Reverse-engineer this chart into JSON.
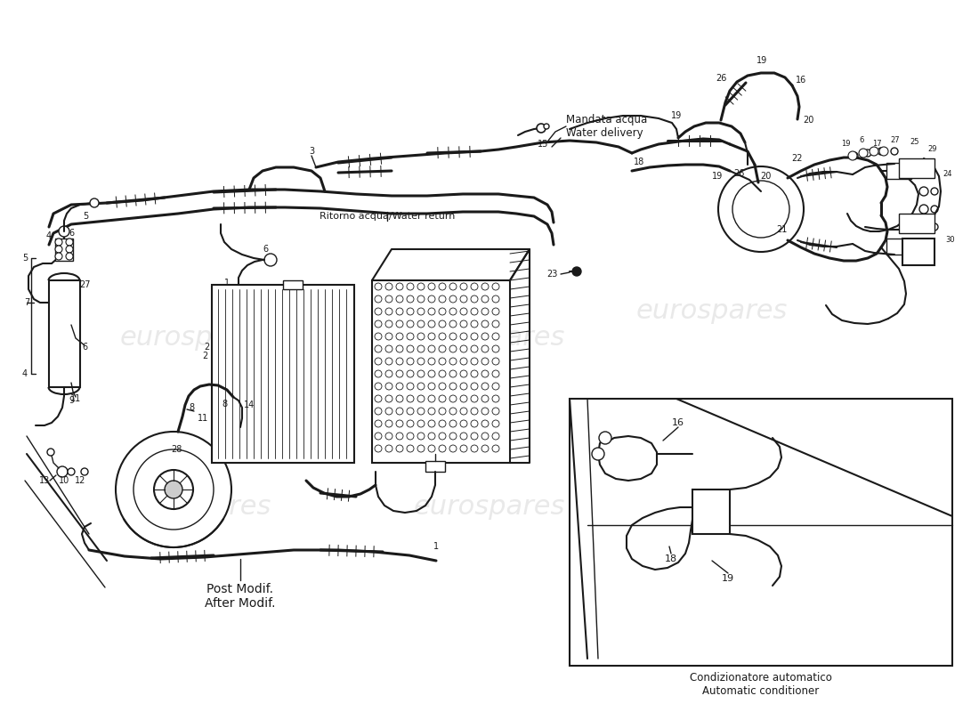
{
  "bg_color": "#ffffff",
  "line_color": "#1a1a1a",
  "text_color": "#1a1a1a",
  "watermark_text": "eurospares",
  "labels": {
    "water_delivery": "Mandata acqua\nWater delivery",
    "water_return": "Ritorno acqua/Water return",
    "post_modif": "Post Modif.\nAfter Modif.",
    "auto_conditioner": "Condizionatore automatico\nAutomatic conditioner"
  },
  "fig_width": 11.0,
  "fig_height": 8.0,
  "dpi": 100
}
